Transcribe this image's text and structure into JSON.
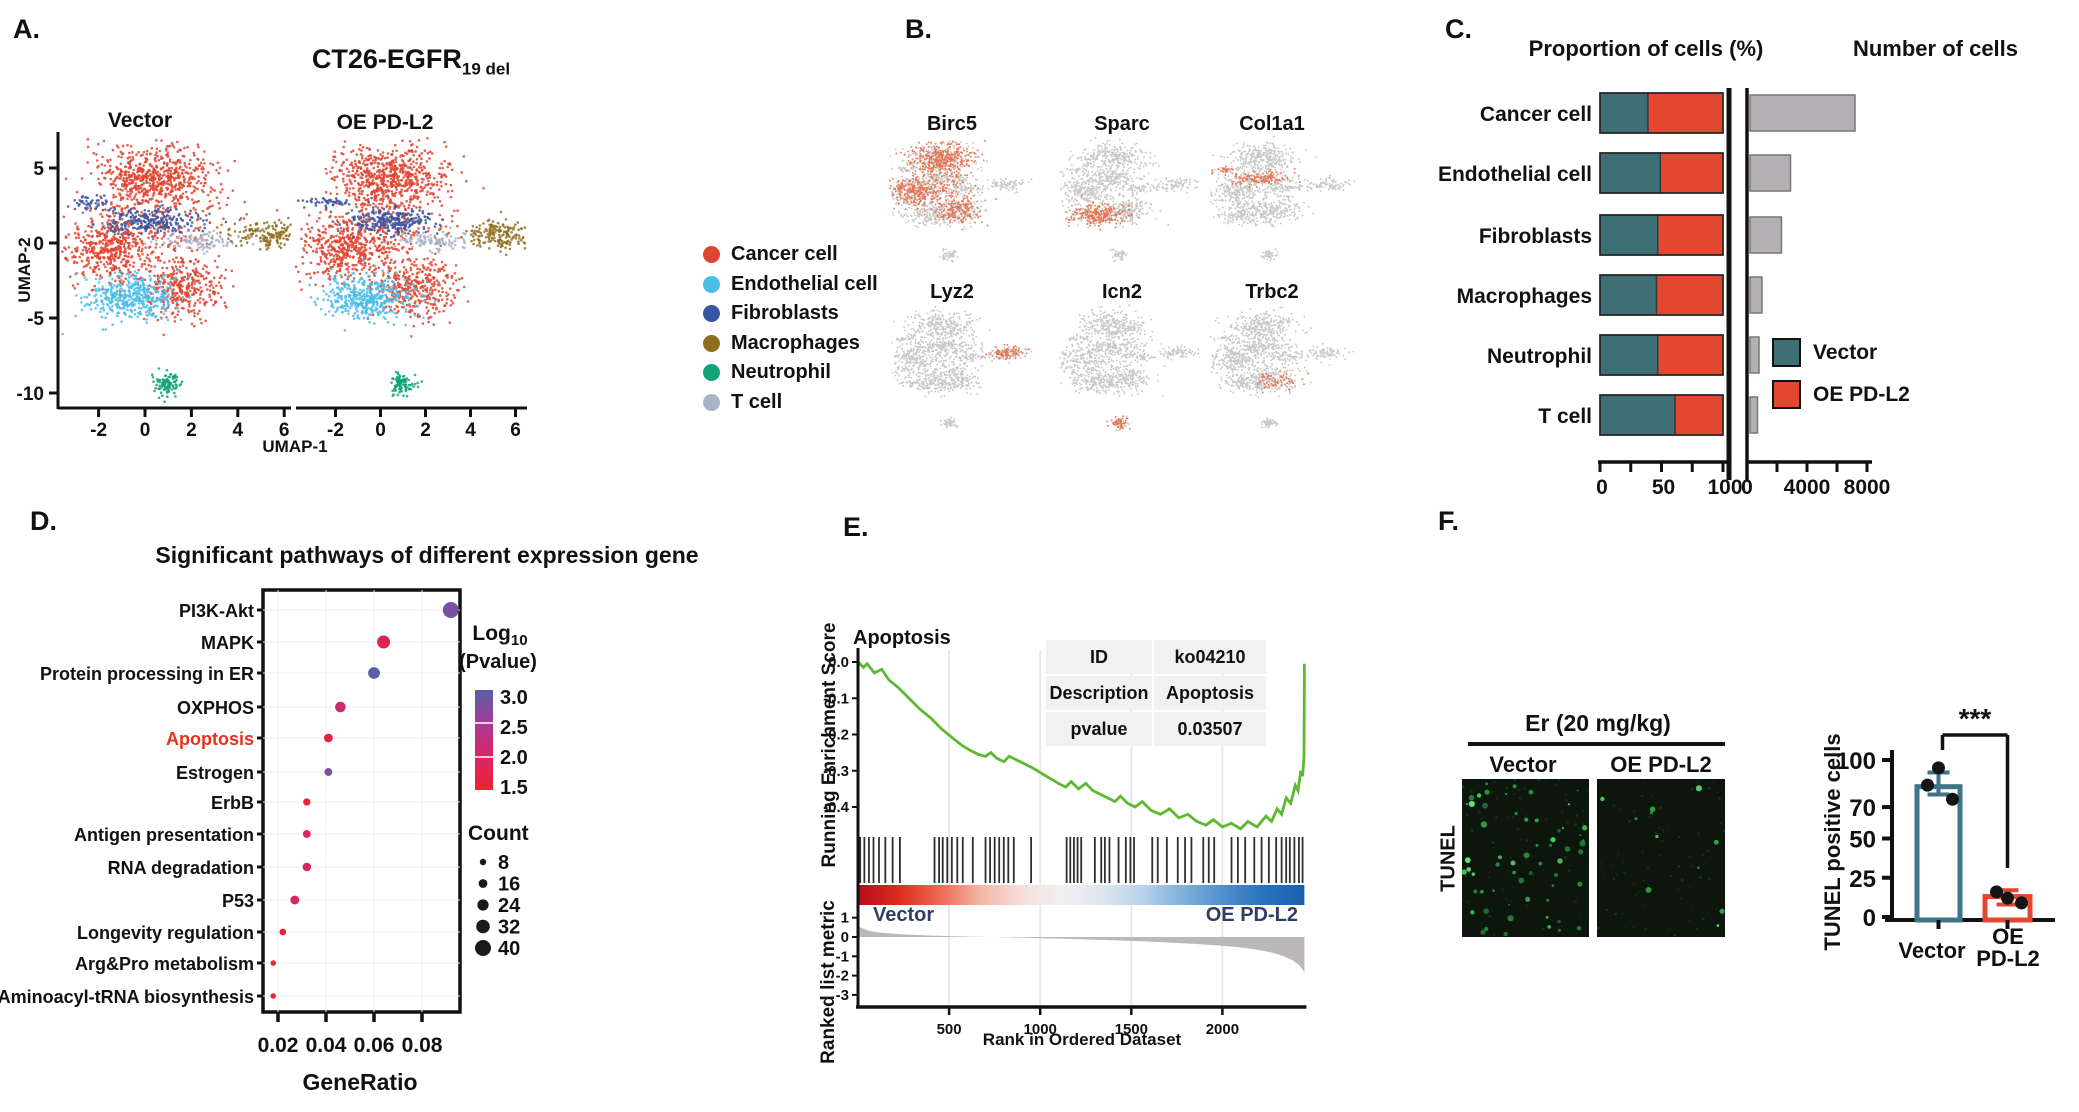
{
  "chart_data": {
    "panel_a": {
      "label": "A.",
      "type": "scatter",
      "title_main": "CT26-EGFR",
      "title_sub": "19 del",
      "subplot_titles": [
        "Vector",
        "OE PD-L2"
      ],
      "x_label": "UMAP-1",
      "y_label": "UMAP-2",
      "x_ticks": [
        -2,
        0,
        2,
        4,
        6
      ],
      "y_ticks": [
        5,
        0,
        -5,
        -10
      ],
      "legend": [
        {
          "label": "Cancer cell",
          "color": "#df4530"
        },
        {
          "label": "Endothelial cell",
          "color": "#49bde8"
        },
        {
          "label": "Fibroblasts",
          "color": "#3a55a0"
        },
        {
          "label": "Macrophages",
          "color": "#8f6f1e"
        },
        {
          "label": "Neutrophil",
          "color": "#12a378"
        },
        {
          "label": "T cell",
          "color": "#a9b3c8"
        }
      ],
      "clusters": [
        {
          "type": "cancer",
          "color": "#df4530",
          "blobs": [
            {
              "cx": 0.4,
              "cy": 4.4,
              "sx": 1.25,
              "sy": 1.05,
              "n": 850
            },
            {
              "cx": -1.6,
              "cy": -0.4,
              "sx": 0.95,
              "sy": 1.05,
              "n": 600
            },
            {
              "cx": 1.6,
              "cy": -3.0,
              "sx": 0.85,
              "sy": 1.0,
              "n": 450
            },
            {
              "cx": 0.6,
              "cy": 1.0,
              "sx": 1.4,
              "sy": 1.3,
              "n": 250
            }
          ]
        },
        {
          "type": "endothelial",
          "color": "#49bde8",
          "blobs": [
            {
              "cx": -0.6,
              "cy": -3.6,
              "sx": 1.0,
              "sy": 0.75,
              "n": 550
            }
          ]
        },
        {
          "type": "fibroblast",
          "color": "#3a55a0",
          "blobs": [
            {
              "cx": 0.3,
              "cy": 1.5,
              "sx": 1.05,
              "sy": 0.45,
              "n": 320
            },
            {
              "cx": -2.4,
              "cy": 2.7,
              "sx": 0.5,
              "sy": 0.2,
              "n": 60
            }
          ]
        },
        {
          "type": "tcell",
          "color": "#a9b3c8",
          "blobs": [
            {
              "cx": 2.3,
              "cy": 0.1,
              "sx": 0.75,
              "sy": 0.3,
              "n": 140
            }
          ]
        },
        {
          "type": "macrophage",
          "color": "#8f6f1e",
          "blobs": [
            {
              "cx": 5.3,
              "cy": 0.6,
              "sx": 0.75,
              "sy": 0.45,
              "n": 220
            }
          ]
        },
        {
          "type": "neutrophil",
          "color": "#12a378",
          "blobs": [
            {
              "cx": 1.0,
              "cy": -9.4,
              "sx": 0.3,
              "sy": 0.4,
              "n": 130
            }
          ]
        }
      ]
    },
    "panel_b": {
      "label": "B.",
      "type": "scatter",
      "base_color": "#c9c9c9",
      "highlight_color": "#e8714a",
      "genes": [
        {
          "name": "Birc5",
          "highlight": "cancer"
        },
        {
          "name": "Sparc",
          "highlight": "endothelial"
        },
        {
          "name": "Col1a1",
          "highlight": "fibroblast"
        },
        {
          "name": "Lyz2",
          "highlight": "macrophage"
        },
        {
          "name": "Icn2",
          "highlight": "neutrophil"
        },
        {
          "name": "Trbc2",
          "highlight": "tcell",
          "highlight_blobs": [
            {
              "cx": 1.6,
              "cy": -3.4,
              "sx": 0.8,
              "sy": 0.6,
              "n": 150
            }
          ]
        }
      ]
    },
    "panel_c": {
      "label": "C.",
      "type": "bar",
      "title_left": "Proportion of cells (%)",
      "title_right": "Number of cells",
      "categories": [
        "Cancer cell",
        "Endothelial cell",
        "Fibroblasts",
        "Macrophages",
        "Neutrophil",
        "T cell"
      ],
      "series": [
        {
          "name": "Vector",
          "color": "#3e6f74",
          "proportion": [
            39,
            49,
            47,
            46,
            47,
            61
          ]
        },
        {
          "name": "OE PD-L2",
          "color": "#e34730",
          "proportion": [
            61,
            51,
            53,
            54,
            53,
            39
          ]
        }
      ],
      "number_of_cells": [
        7000,
        2700,
        2100,
        800,
        600,
        500
      ],
      "num_bar_color": "#b5b0b3",
      "prop_axis": {
        "ticks": [
          0,
          25,
          50,
          75,
          100
        ],
        "labels": [
          {
            "v": 0,
            "t": "0"
          },
          {
            "v": 50,
            "t": "50"
          },
          {
            "v": 100,
            "t": "100"
          }
        ],
        "max": 100
      },
      "num_axis": {
        "ticks": [
          0,
          2000,
          4000,
          6000,
          8000
        ],
        "labels": [
          {
            "v": 0,
            "t": "0"
          },
          {
            "v": 4000,
            "t": "4000"
          },
          {
            "v": 8000,
            "t": "8000"
          }
        ],
        "max": 8800
      }
    },
    "panel_d": {
      "label": "D.",
      "type": "scatter",
      "title": "Significant pathways of different expression gene",
      "x_label": "GeneRatio",
      "x_ticks": [
        {
          "v": 0.02,
          "t": "0.02"
        },
        {
          "v": 0.04,
          "t": "0.04"
        },
        {
          "v": 0.06,
          "t": "0.06"
        },
        {
          "v": 0.08,
          "t": "0.08"
        }
      ],
      "highlight_label_color": "#e8321e",
      "pathways": [
        {
          "name": "PI3K-Akt",
          "gene_ratio": 0.092,
          "log10_pvalue": 2.8,
          "count": 40,
          "highlight": false
        },
        {
          "name": "MAPK",
          "gene_ratio": 0.064,
          "log10_pvalue": 1.8,
          "count": 30,
          "highlight": false
        },
        {
          "name": "Protein processing in ER",
          "gene_ratio": 0.06,
          "log10_pvalue": 3.0,
          "count": 26,
          "highlight": false
        },
        {
          "name": "OXPHOS",
          "gene_ratio": 0.046,
          "log10_pvalue": 2.1,
          "count": 22,
          "highlight": false
        },
        {
          "name": "Apoptosis",
          "gene_ratio": 0.041,
          "log10_pvalue": 1.7,
          "count": 16,
          "highlight": true
        },
        {
          "name": "Estrogen",
          "gene_ratio": 0.041,
          "log10_pvalue": 2.8,
          "count": 13,
          "highlight": false
        },
        {
          "name": "ErbB",
          "gene_ratio": 0.032,
          "log10_pvalue": 1.5,
          "count": 11,
          "highlight": false
        },
        {
          "name": "Antigen presentation",
          "gene_ratio": 0.032,
          "log10_pvalue": 1.9,
          "count": 13,
          "highlight": false
        },
        {
          "name": "RNA degradation",
          "gene_ratio": 0.032,
          "log10_pvalue": 2.0,
          "count": 15,
          "highlight": false
        },
        {
          "name": "P53",
          "gene_ratio": 0.027,
          "log10_pvalue": 1.9,
          "count": 16,
          "highlight": false
        },
        {
          "name": "Longevity regulation",
          "gene_ratio": 0.022,
          "log10_pvalue": 1.6,
          "count": 9,
          "highlight": false
        },
        {
          "name": "Arg&Pro metabolism",
          "gene_ratio": 0.018,
          "log10_pvalue": 1.5,
          "count": 5,
          "highlight": false
        },
        {
          "name": "Aminoacyl-tRNA biosynthesis",
          "gene_ratio": 0.018,
          "log10_pvalue": 1.5,
          "count": 5,
          "highlight": false
        }
      ],
      "colorbar": {
        "title_main": "Log",
        "title_sub": "10",
        "title_line2": "(Pvalue)",
        "tick_labels": [
          "3.0",
          "2.5",
          "2.0",
          "1.5"
        ],
        "stops": [
          {
            "v": 3.0,
            "c": "#5a5fa8"
          },
          {
            "v": 2.5,
            "c": "#a73b96"
          },
          {
            "v": 2.0,
            "c": "#d92565"
          },
          {
            "v": 1.5,
            "c": "#ee2231"
          }
        ]
      },
      "count_legend": {
        "title": "Count",
        "items": [
          8,
          16,
          24,
          32,
          40
        ]
      }
    },
    "panel_e": {
      "label": "E.",
      "type": "line",
      "plot_title": "Apoptosis",
      "y_label_top": "Running Enrichment Score",
      "y_label_bottom": "Ranked list metric",
      "x_label": "Rank in Ordered Dataset",
      "left_group": "Vector",
      "right_group": "OE PD-L2",
      "group_label_color": "#2e3f63",
      "curve_color": "#5db832",
      "metric_fill": "#bdb8b8",
      "hit_color": "#2f2f2f",
      "band_colors": [
        "#b50d1b",
        "#dd2c1e",
        "#e86a50",
        "#f3b5a5",
        "#f6ded8",
        "#f1f0f0",
        "#dfe6f1",
        "#b9d2ea",
        "#7fb0da",
        "#4f90cb",
        "#2a72bd",
        "#1a5fb0"
      ],
      "es_ticks": [
        {
          "v": 0.0,
          "t": "0.0"
        },
        {
          "v": -0.1,
          "t": "-0.1"
        },
        {
          "v": -0.2,
          "t": "-0.2"
        },
        {
          "v": -0.3,
          "t": "-0.3"
        },
        {
          "v": -0.4,
          "t": "-0.4"
        }
      ],
      "metric_ticks": [
        {
          "v": 1,
          "t": "1"
        },
        {
          "v": 0,
          "t": "0"
        },
        {
          "v": -1,
          "t": "-1"
        },
        {
          "v": -2,
          "t": "-2"
        },
        {
          "v": -3,
          "t": "-3"
        }
      ],
      "x_ticks": [
        {
          "v": 500,
          "t": "500"
        },
        {
          "v": 1000,
          "t": "1000"
        },
        {
          "v": 1500,
          "t": "1500"
        },
        {
          "v": 2000,
          "t": "2000"
        }
      ],
      "max_rank": 2450,
      "table": {
        "rows": [
          {
            "key": "ID",
            "value": "ko04210"
          },
          {
            "key": "Description",
            "value": "Apoptosis"
          },
          {
            "key": "pvalue",
            "value": "0.03507"
          }
        ]
      },
      "es_curve": [
        [
          0,
          0
        ],
        [
          30,
          -0.015
        ],
        [
          50,
          -0.005
        ],
        [
          90,
          -0.03
        ],
        [
          130,
          -0.02
        ],
        [
          170,
          -0.05
        ],
        [
          220,
          -0.07
        ],
        [
          280,
          -0.1
        ],
        [
          340,
          -0.13
        ],
        [
          400,
          -0.155
        ],
        [
          460,
          -0.185
        ],
        [
          520,
          -0.21
        ],
        [
          570,
          -0.23
        ],
        [
          620,
          -0.245
        ],
        [
          660,
          -0.255
        ],
        [
          700,
          -0.26
        ],
        [
          730,
          -0.25
        ],
        [
          760,
          -0.265
        ],
        [
          800,
          -0.275
        ],
        [
          830,
          -0.26
        ],
        [
          870,
          -0.27
        ],
        [
          910,
          -0.28
        ],
        [
          950,
          -0.29
        ],
        [
          1000,
          -0.305
        ],
        [
          1050,
          -0.32
        ],
        [
          1100,
          -0.335
        ],
        [
          1140,
          -0.345
        ],
        [
          1170,
          -0.33
        ],
        [
          1210,
          -0.35
        ],
        [
          1250,
          -0.335
        ],
        [
          1290,
          -0.355
        ],
        [
          1330,
          -0.365
        ],
        [
          1370,
          -0.375
        ],
        [
          1410,
          -0.385
        ],
        [
          1440,
          -0.37
        ],
        [
          1480,
          -0.39
        ],
        [
          1520,
          -0.4
        ],
        [
          1560,
          -0.385
        ],
        [
          1610,
          -0.41
        ],
        [
          1660,
          -0.42
        ],
        [
          1710,
          -0.405
        ],
        [
          1760,
          -0.43
        ],
        [
          1810,
          -0.42
        ],
        [
          1860,
          -0.44
        ],
        [
          1910,
          -0.45
        ],
        [
          1950,
          -0.435
        ],
        [
          2000,
          -0.455
        ],
        [
          2050,
          -0.445
        ],
        [
          2100,
          -0.46
        ],
        [
          2140,
          -0.44
        ],
        [
          2190,
          -0.455
        ],
        [
          2240,
          -0.425
        ],
        [
          2270,
          -0.44
        ],
        [
          2300,
          -0.405
        ],
        [
          2325,
          -0.42
        ],
        [
          2350,
          -0.375
        ],
        [
          2375,
          -0.39
        ],
        [
          2400,
          -0.34
        ],
        [
          2415,
          -0.355
        ],
        [
          2430,
          -0.3
        ],
        [
          2440,
          -0.315
        ],
        [
          2448,
          -0.26
        ],
        [
          2450,
          -0.005
        ]
      ],
      "hit_ranks": [
        12,
        35,
        60,
        85,
        115,
        150,
        190,
        230,
        420,
        445,
        465,
        490,
        515,
        545,
        575,
        630,
        700,
        725,
        750,
        775,
        800,
        825,
        855,
        950,
        1145,
        1165,
        1185,
        1205,
        1225,
        1300,
        1335,
        1355,
        1380,
        1430,
        1470,
        1495,
        1515,
        1615,
        1645,
        1695,
        1755,
        1795,
        1830,
        1895,
        1925,
        1955,
        2050,
        2085,
        2125,
        2175,
        2215,
        2255,
        2295,
        2325,
        2350,
        2370,
        2395,
        2420,
        2440
      ],
      "metric_curve": [
        [
          0,
          0.55
        ],
        [
          25,
          0.45
        ],
        [
          60,
          0.32
        ],
        [
          110,
          0.24
        ],
        [
          180,
          0.18
        ],
        [
          260,
          0.13
        ],
        [
          360,
          0.09
        ],
        [
          480,
          0.05
        ],
        [
          620,
          0.02
        ],
        [
          800,
          -0.01
        ],
        [
          1000,
          -0.06
        ],
        [
          1200,
          -0.11
        ],
        [
          1400,
          -0.17
        ],
        [
          1600,
          -0.24
        ],
        [
          1800,
          -0.33
        ],
        [
          1950,
          -0.42
        ],
        [
          2080,
          -0.52
        ],
        [
          2180,
          -0.64
        ],
        [
          2260,
          -0.78
        ],
        [
          2330,
          -0.97
        ],
        [
          2385,
          -1.2
        ],
        [
          2420,
          -1.45
        ],
        [
          2440,
          -1.68
        ],
        [
          2450,
          -1.85
        ]
      ]
    },
    "panel_f": {
      "label": "F.",
      "type": "bar",
      "treatment": "Er (20 mg/kg)",
      "col_labels": [
        "Vector",
        "OE PD-L2"
      ],
      "row_label": "TUNEL",
      "image_dot_colors": [
        "#3fd653",
        "#2fae41",
        "#6ae87a",
        "#23863b"
      ],
      "chart": {
        "y_label": "TUNEL positive cells",
        "y_ticks": [
          {
            "t": "100",
            "v": 100
          },
          {
            "t": "70",
            "v": 70
          },
          {
            "t": "50",
            "v": 50
          },
          {
            "t": "25",
            "v": 25
          },
          {
            "t": "0",
            "v": 0
          }
        ],
        "significance": "***",
        "groups": [
          {
            "label_lines": [
              "Vector"
            ],
            "bar_value": 83,
            "color": "#3e7589",
            "dots": [
              84,
              95,
              75
            ],
            "err_low": 78,
            "err_high": 92
          },
          {
            "label_lines": [
              "OE",
              "PD-L2"
            ],
            "bar_value": 13,
            "color": "#e34730",
            "dots": [
              16,
              12,
              9
            ],
            "err_low": 8,
            "err_high": 17
          }
        ]
      }
    }
  }
}
